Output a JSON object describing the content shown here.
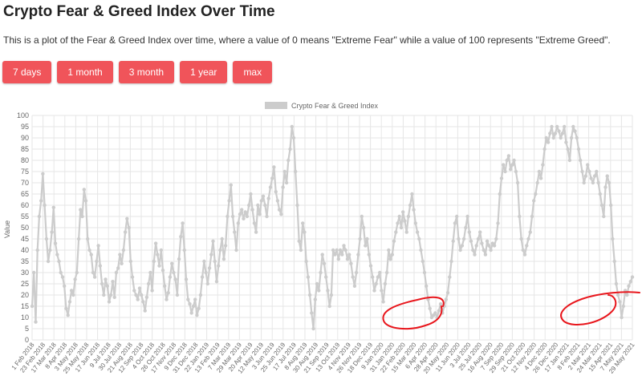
{
  "header": {
    "title": "Crypto Fear & Greed Index Over Time",
    "description": "This is a plot of the Fear & Greed Index over time, where a value of 0 means \"Extreme Fear\" while a value of 100 represents \"Extreme Greed\"."
  },
  "range_buttons": [
    {
      "label": "7 days"
    },
    {
      "label": "1 month"
    },
    {
      "label": "3 month"
    },
    {
      "label": "1 year"
    },
    {
      "label": "max"
    }
  ],
  "colors": {
    "accent": "#f0545a",
    "series": "#cccccc",
    "grid": "#e6e6e6",
    "annotation": "#e8161c"
  },
  "chart_data": {
    "type": "line",
    "title": "",
    "xlabel": "",
    "ylabel": "Value",
    "ylim": [
      0,
      100
    ],
    "yticks": [
      0,
      5,
      10,
      15,
      20,
      25,
      30,
      35,
      40,
      45,
      50,
      55,
      60,
      65,
      70,
      75,
      80,
      85,
      90,
      95,
      100
    ],
    "grid": true,
    "legend": "top-center",
    "x_tick_labels": [
      "1 Feb 2018",
      "23 Feb 2018",
      "17 Mar 2018",
      "8 Apr 2018",
      "3 May 2018",
      "25 May 2018",
      "17 Jun 2018",
      "9 Jul 2018",
      "30 Jul 2018",
      "21 Aug 2018",
      "12 Sep 2018",
      "4 Oct 2018",
      "26 Oct 2018",
      "17 Nov 2018",
      "9 Dec 2018",
      "31 Dec 2018",
      "22 Jan 2019",
      "13 Feb 2019",
      "7 Mar 2019",
      "29 Mar 2019",
      "20 Apr 2019",
      "12 May 2019",
      "3 Jun 2019",
      "25 Jun 2019",
      "17 Jul 2019",
      "8 Aug 2019",
      "30 Aug 2019",
      "21 Sep 2019",
      "13 Oct 2019",
      "4 Nov 2019",
      "26 Nov 2019",
      "18 Dec 2019",
      "9 Jan 2020",
      "31 Jan 2020",
      "22 Feb 2020",
      "15 Mar 2020",
      "6 Apr 2020",
      "28 Apr 2020",
      "20 May 2020",
      "11 Jun 2020",
      "3 Jul 2020",
      "25 Jul 2020",
      "16 Aug 2020",
      "7 Sep 2020",
      "29 Sep 2020",
      "21 Oct 2020",
      "12 Nov 2020",
      "4 Dec 2020",
      "26 Dec 2020",
      "17 Jan 2021",
      "8 Feb 2021",
      "2 Mar 2021",
      "24 Mar 2021",
      "15 Apr 2021",
      "7 May 2021",
      "29 May 2021"
    ],
    "series": [
      {
        "name": "Crypto Fear & Greed Index",
        "values": [
          15,
          30,
          8,
          40,
          55,
          62,
          74,
          60,
          45,
          35,
          40,
          48,
          59,
          43,
          38,
          35,
          30,
          28,
          24,
          14,
          11,
          17,
          22,
          20,
          27,
          30,
          45,
          58,
          55,
          67,
          62,
          45,
          40,
          38,
          30,
          28,
          35,
          42,
          33,
          25,
          20,
          27,
          24,
          17,
          20,
          26,
          19,
          30,
          32,
          38,
          34,
          40,
          48,
          54,
          50,
          35,
          28,
          22,
          20,
          18,
          23,
          20,
          17,
          13,
          19,
          25,
          30,
          22,
          35,
          43,
          38,
          33,
          40,
          31,
          24,
          18,
          21,
          28,
          34,
          30,
          27,
          20,
          36,
          46,
          52,
          40,
          27,
          18,
          16,
          12,
          15,
          18,
          11,
          14,
          20,
          28,
          35,
          30,
          25,
          32,
          38,
          44,
          35,
          26,
          33,
          40,
          45,
          36,
          42,
          55,
          62,
          69,
          55,
          48,
          40,
          52,
          56,
          58,
          54,
          57,
          55,
          60,
          65,
          58,
          52,
          48,
          60,
          56,
          62,
          64,
          60,
          55,
          63,
          68,
          72,
          77,
          66,
          62,
          58,
          56,
          68,
          75,
          70,
          80,
          85,
          95,
          90,
          75,
          60,
          44,
          40,
          52,
          48,
          35,
          28,
          20,
          12,
          5,
          18,
          25,
          22,
          30,
          38,
          34,
          28,
          22,
          15,
          20,
          40,
          38,
          40,
          36,
          40,
          38,
          42,
          40,
          36,
          38,
          34,
          28,
          24,
          30,
          38,
          45,
          55,
          50,
          42,
          45,
          38,
          33,
          28,
          22,
          25,
          28,
          30,
          22,
          17,
          25,
          30,
          40,
          36,
          38,
          44,
          48,
          52,
          55,
          50,
          57,
          53,
          48,
          55,
          60,
          65,
          58,
          52,
          48,
          45,
          40,
          35,
          30,
          24,
          18,
          14,
          10,
          11,
          12,
          10,
          13,
          16,
          12,
          15,
          18,
          21,
          28,
          35,
          44,
          52,
          55,
          45,
          40,
          42,
          45,
          50,
          55,
          48,
          44,
          40,
          38,
          42,
          45,
          48,
          43,
          40,
          38,
          44,
          42,
          40,
          43,
          42,
          45,
          52,
          65,
          72,
          78,
          75,
          80,
          82,
          76,
          78,
          80,
          75,
          70,
          55,
          45,
          40,
          38,
          42,
          45,
          48,
          55,
          62,
          65,
          70,
          75,
          72,
          78,
          85,
          90,
          88,
          92,
          95,
          90,
          92,
          95,
          93,
          90,
          92,
          95,
          88,
          85,
          80,
          90,
          95,
          93,
          90,
          85,
          80,
          75,
          70,
          73,
          78,
          75,
          72,
          70,
          73,
          75,
          70,
          65,
          60,
          55,
          68,
          73,
          70,
          60,
          45,
          35,
          25,
          20,
          17,
          10,
          15,
          22,
          20,
          24,
          26,
          28
        ]
      }
    ]
  }
}
